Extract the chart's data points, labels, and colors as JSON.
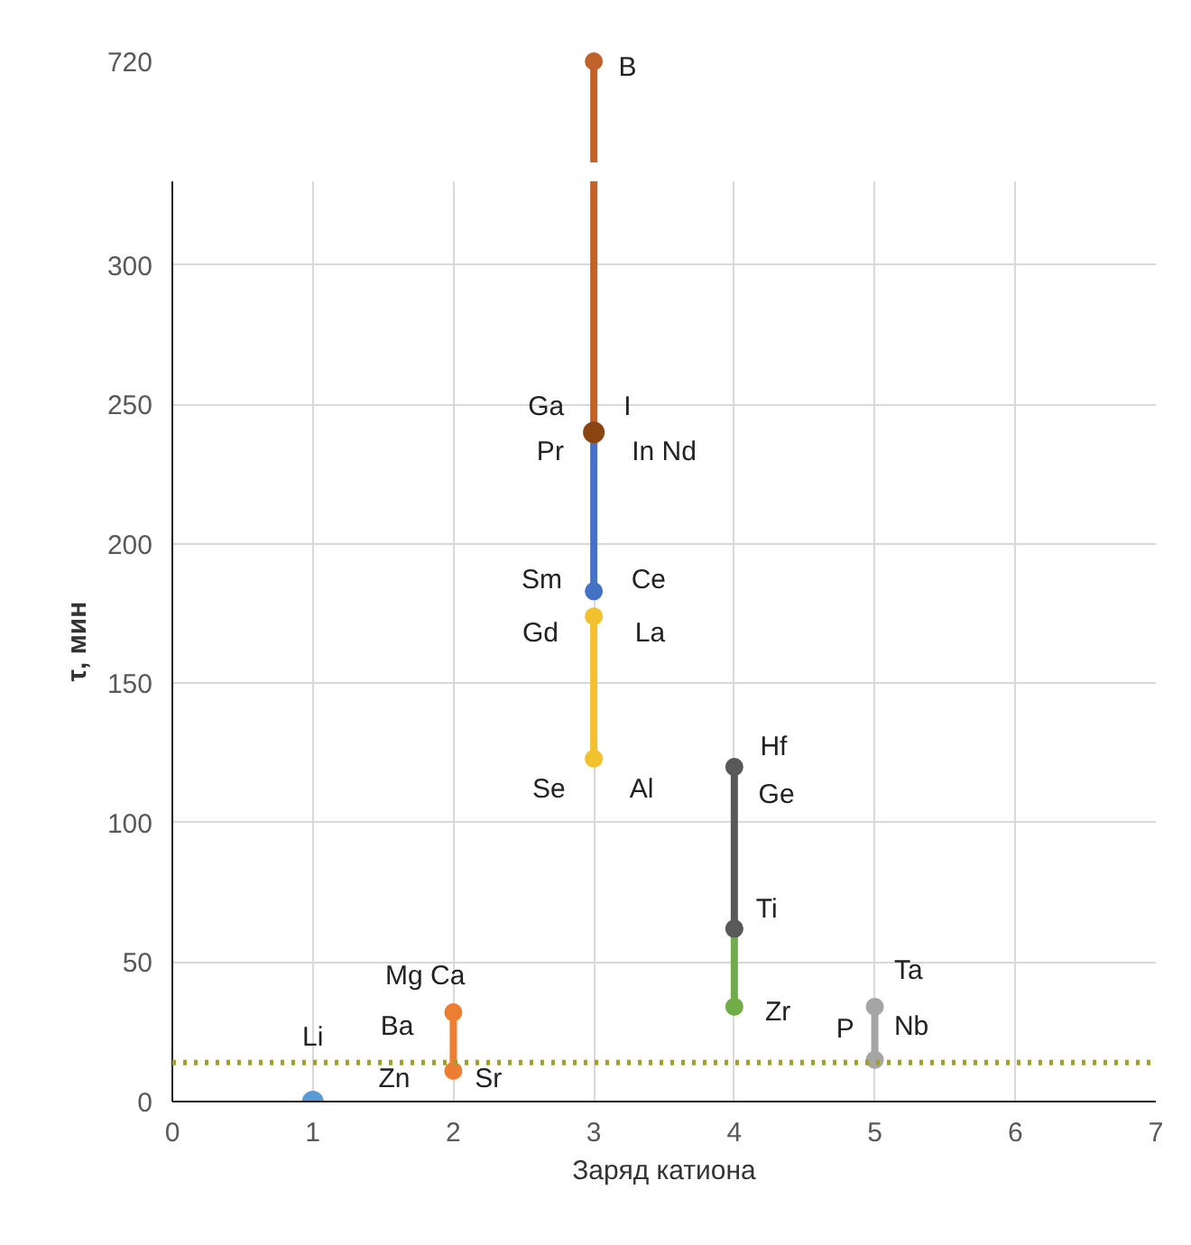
{
  "chart_data": [
    {
      "type": "other",
      "annotations": [
        "720",
        "B"
      ]
    },
    {
      "type": "line",
      "xlabel": "Заряд катиона",
      "ylabel": "τ, мин",
      "xlim": [
        0,
        7
      ],
      "xticks": [
        0,
        1,
        2,
        3,
        4,
        5,
        6,
        7
      ],
      "ylim": [
        0,
        330
      ],
      "yticks": [
        0,
        50,
        100,
        150,
        200,
        250,
        300
      ],
      "grid": true,
      "marker": "circle",
      "line_style": "solid",
      "series": [
        {
          "type": "scatter",
          "color": "#5b9bd5",
          "x": [
            1
          ],
          "values": [
            0
          ]
        },
        {
          "color": "#ed7d31",
          "x": [
            2,
            2
          ],
          "values": [
            11,
            32
          ]
        },
        {
          "color": "#c0622b",
          "x": [
            3,
            3
          ],
          "values": [
            240,
            330
          ],
          "marker": "none"
        },
        {
          "color": "#4472c4",
          "x": [
            3,
            3
          ],
          "values": [
            240,
            183
          ]
        },
        {
          "type": "scatter",
          "color": "#8b4513",
          "x": [
            3
          ],
          "values": [
            240
          ]
        },
        {
          "color": "#f2c12e",
          "x": [
            3,
            3
          ],
          "values": [
            174,
            123
          ]
        },
        {
          "color": "#70ad47",
          "x": [
            4,
            4
          ],
          "values": [
            62,
            34
          ]
        },
        {
          "color": "#595959",
          "x": [
            4,
            4
          ],
          "values": [
            120,
            62
          ]
        },
        {
          "color": "#a5a5a5",
          "x": [
            5,
            5
          ],
          "values": [
            34,
            15
          ]
        }
      ],
      "ref_lines": [
        {
          "axis": "y",
          "value": 14,
          "color": "#a0a030",
          "line_style": "dotted"
        }
      ],
      "annotations": [
        "Ga",
        "I",
        "Pr",
        "In Nd",
        "Sm",
        "Ce",
        "Gd",
        "La",
        "Se",
        "Al",
        "Hf",
        "Ge",
        "Ti",
        "Zr",
        "Ta",
        "Nb",
        "P",
        "Mg Ca",
        "Ba",
        "Zn",
        "Sr",
        "Li"
      ]
    }
  ]
}
